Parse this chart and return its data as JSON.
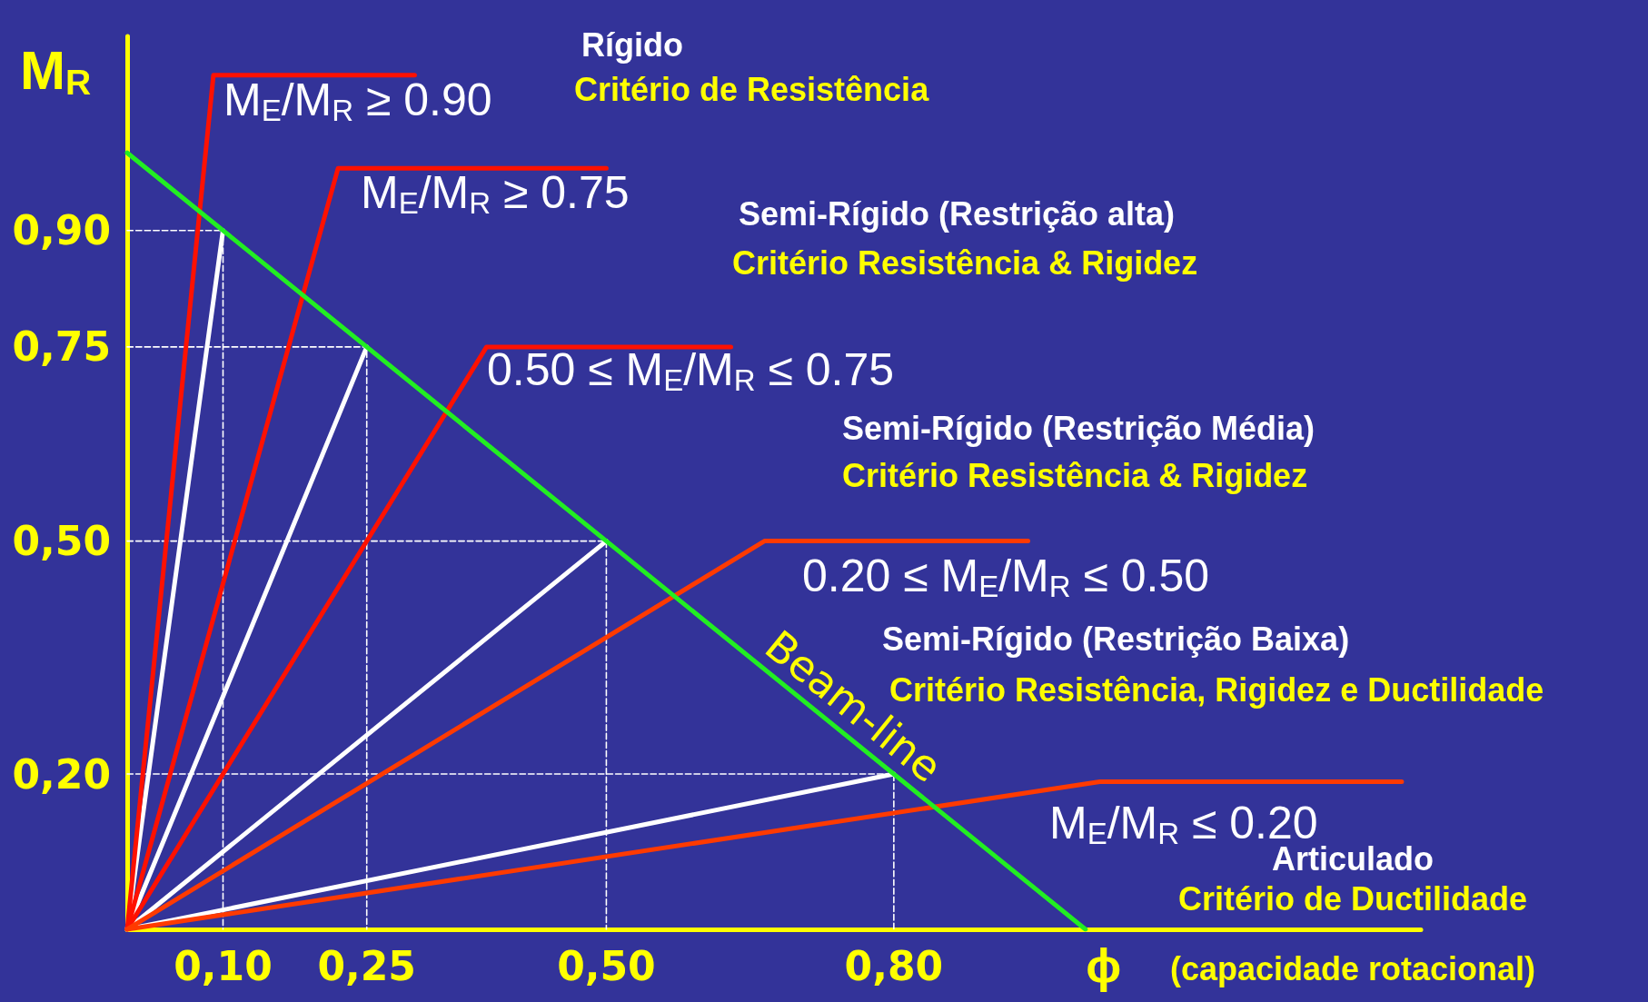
{
  "chart_data": {
    "type": "line",
    "xlabel": "ϕ",
    "ylabel": "M$_{R}$",
    "xlim": [
      0,
      1.35
    ],
    "ylim": [
      0,
      1.15
    ],
    "xticks": [
      {
        "value": 0.1,
        "label": "0,10"
      },
      {
        "value": 0.25,
        "label": "0,25"
      },
      {
        "value": 0.5,
        "label": "0,50"
      },
      {
        "value": 0.8,
        "label": "0,80"
      }
    ],
    "yticks": [
      {
        "value": 0.2,
        "label": "0,20"
      },
      {
        "value": 0.5,
        "label": "0,50"
      },
      {
        "value": 0.75,
        "label": "0,75"
      },
      {
        "value": 0.9,
        "label": "0,90"
      }
    ],
    "grid": false,
    "legend": false,
    "marker": "none",
    "series": [
      {
        "color": "#ffffff",
        "line_style": "dashed",
        "x": [
          0,
          0.1,
          0.1
        ],
        "values": [
          0.9,
          0.9,
          0
        ]
      },
      {
        "color": "#ffffff",
        "line_style": "dashed",
        "x": [
          0,
          0.25,
          0.25
        ],
        "values": [
          0.75,
          0.75,
          0
        ]
      },
      {
        "color": "#ffffff",
        "line_style": "dashed",
        "x": [
          0,
          0.5,
          0.5
        ],
        "values": [
          0.5,
          0.5,
          0
        ]
      },
      {
        "color": "#ffffff",
        "line_style": "dashed",
        "x": [
          0,
          0.8,
          0.8
        ],
        "values": [
          0.2,
          0.2,
          0
        ]
      },
      {
        "color": "#ffffff",
        "line_style": "solid",
        "x": [
          0,
          0.1
        ],
        "values": [
          0,
          0.9
        ]
      },
      {
        "color": "#ffffff",
        "line_style": "solid",
        "x": [
          0,
          0.25
        ],
        "values": [
          0,
          0.75
        ]
      },
      {
        "color": "#ffffff",
        "line_style": "solid",
        "x": [
          0,
          0.5
        ],
        "values": [
          0,
          0.5
        ]
      },
      {
        "color": "#ffffff",
        "line_style": "solid",
        "x": [
          0,
          0.8
        ],
        "values": [
          0,
          0.2
        ]
      },
      {
        "color": "#ff1100",
        "line_style": "solid",
        "x": [
          0,
          0.09,
          0.3
        ],
        "values": [
          0,
          1.1,
          1.1
        ]
      },
      {
        "color": "#ff1100",
        "line_style": "solid",
        "x": [
          0,
          0.22,
          0.5
        ],
        "values": [
          0,
          0.98,
          0.98
        ]
      },
      {
        "color": "#ff1100",
        "line_style": "solid",
        "x": [
          0,
          0.375,
          0.63
        ],
        "values": [
          0,
          0.75,
          0.75
        ]
      },
      {
        "color": "#ff3a00",
        "line_style": "solid",
        "x": [
          0,
          0.665,
          0.94
        ],
        "values": [
          0,
          0.5,
          0.5
        ]
      },
      {
        "color": "#ff3a00",
        "line_style": "solid",
        "x": [
          0,
          1.015,
          1.33
        ],
        "values": [
          0,
          0.19,
          0.19
        ]
      },
      {
        "name": "Beam-line",
        "color": "#22ee22",
        "line_style": "solid",
        "x": [
          0,
          1
        ],
        "values": [
          1,
          0
        ]
      }
    ],
    "annotations": [
      "Rígido",
      "Critério de Resistência",
      "M$_{E}$/M$_{R}$ ≥ 0.90",
      "M$_{E}$/M$_{R}$ ≥ 0.75",
      "Semi-Rígido (Restrição alta)",
      "Critério Resistência & Rigidez",
      "0.50 ≤ M$_{E}$/M$_{R}$ ≤ 0.75",
      "Semi-Rígido (Restrição Média)",
      "Critério Resistência & Rigidez",
      "0.20 ≤ M$_{E}$/M$_{R}$ ≤ 0.50",
      "Semi-Rígido (Restrição Baixa)",
      "Critério Resistência, Rigidez e Ductilidade",
      "M$_{E}$/M$_{R}$ ≤ 0.20",
      "Articulado",
      "Critério de Ductilidade",
      "(capacidade rotacional)"
    ]
  }
}
